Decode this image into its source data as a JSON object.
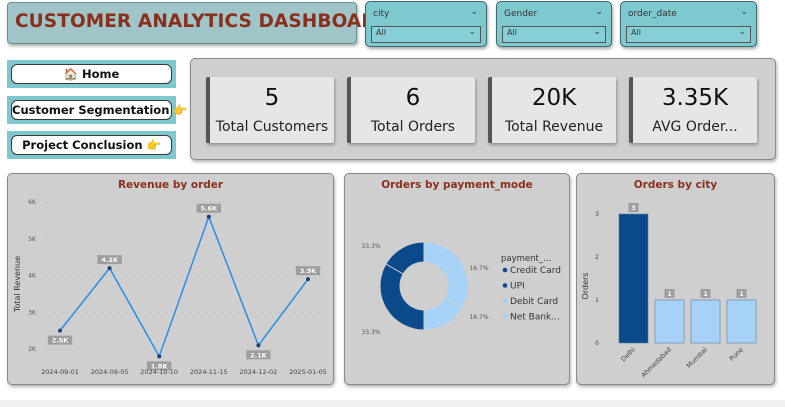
{
  "dashboard": {
    "title": "CUSTOMER ANALYTICS DASHBOARD"
  },
  "slicers": [
    {
      "label": "city",
      "value": "All"
    },
    {
      "label": "Gender",
      "value": "All"
    },
    {
      "label": "order_date",
      "value": "All"
    }
  ],
  "nav": [
    {
      "label": "🏠 Home"
    },
    {
      "label": "Customer Segmentation 👉"
    },
    {
      "label": "Project Conclusion 👉"
    }
  ],
  "kpis": [
    {
      "value": "5",
      "label": "Total Customers"
    },
    {
      "value": "6",
      "label": "Total Orders"
    },
    {
      "value": "20K",
      "label": "Total Revenue"
    },
    {
      "value": "3.35K",
      "label": "AVG Order..."
    }
  ],
  "colors": {
    "accent_title": "#8b2f1d",
    "line": "#2a8ee8",
    "dark_blue": "#0b4a8a",
    "light_blue": "#a6d2f7"
  },
  "chart_data": [
    {
      "type": "line",
      "title": "Revenue by order",
      "ylabel": "Total Revenue",
      "xlabel": "",
      "x": [
        "2024-09-01",
        "2024-09-05",
        "2024-10-10",
        "2024-11-15",
        "2024-12-02",
        "2025-01-05"
      ],
      "values": [
        2500,
        4200,
        1800,
        5600,
        2100,
        3900
      ],
      "data_labels": [
        "2.5K",
        "4.2K",
        "1.8K",
        "5.6K",
        "2.1K",
        "3.9K"
      ],
      "yticks": [
        "2K",
        "3K",
        "4K",
        "5K",
        "6K"
      ],
      "ylim": [
        2000,
        6000
      ]
    },
    {
      "type": "pie",
      "title": "Orders by payment_mode",
      "legend_title": "payment_...",
      "labels": [
        "Credit Card",
        "UPI",
        "Debit Card",
        "Net Bank..."
      ],
      "values": [
        1,
        2,
        2,
        1
      ],
      "data_labels": [
        "16.7%",
        "33.3%",
        "33.3%",
        "16.7%"
      ],
      "colors": [
        "#0b4a8a",
        "#0b4a8a",
        "#a6d2f7",
        "#a6d2f7"
      ]
    },
    {
      "type": "bar",
      "title": "Orders by city",
      "ylabel": "Orders",
      "categories": [
        "Delhi",
        "Ahmedabad",
        "Mumbai",
        "Pune"
      ],
      "values": [
        3,
        1,
        1,
        1
      ],
      "yticks": [
        "0",
        "1",
        "2",
        "3"
      ],
      "ylim": [
        0,
        3
      ]
    }
  ]
}
